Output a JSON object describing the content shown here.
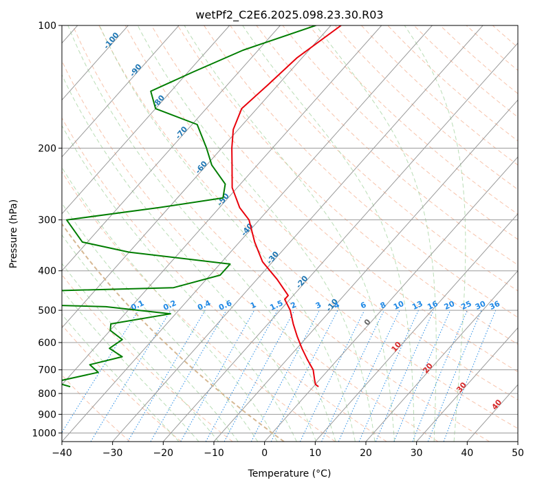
{
  "chart_data": {
    "type": "skewt",
    "title": "wetPf2_C2E6.2025.098.23.30.R03",
    "xlabel": "Temperature (°C)",
    "ylabel": "Pressure (hPa)",
    "xlim": [
      -40,
      50
    ],
    "ylim": [
      1050,
      100
    ],
    "x_ticks": [
      -40,
      -30,
      -20,
      -10,
      0,
      10,
      20,
      30,
      40,
      50
    ],
    "x_tick_labels": [
      "−40",
      "−30",
      "−20",
      "−10",
      "0",
      "10",
      "20",
      "30",
      "40",
      "50"
    ],
    "y_ticks": [
      100,
      200,
      300,
      400,
      500,
      600,
      700,
      800,
      900,
      1000
    ],
    "y_tick_labels": [
      "100",
      "200",
      "300",
      "400",
      "500",
      "600",
      "700",
      "800",
      "900",
      "1000"
    ],
    "grid": true,
    "log_pressure": true,
    "colors": {
      "temperature": "#e8000b",
      "dewpoint": "#007d00",
      "isotherm": "#999999",
      "isobar": "#999999",
      "dry_adiabat": "#f4a988",
      "moist_adiabat": "#a8d5a2",
      "mixing_ratio": "#1e88e5",
      "zero_isotherm": "#d2b48c",
      "mixing_ratio_label": "#1e88e5",
      "dry_adiabat_label": "#d62728",
      "isotherm_label": "#1f77b4"
    },
    "series": [
      {
        "name": "Temperature",
        "points": [
          [
            100,
            -58
          ],
          [
            120,
            -61
          ],
          [
            140,
            -62
          ],
          [
            160,
            -63
          ],
          [
            180,
            -61
          ],
          [
            200,
            -58
          ],
          [
            220,
            -55
          ],
          [
            250,
            -51
          ],
          [
            280,
            -46
          ],
          [
            300,
            -42
          ],
          [
            340,
            -37
          ],
          [
            380,
            -32
          ],
          [
            420,
            -26
          ],
          [
            460,
            -21
          ],
          [
            470,
            -21
          ],
          [
            500,
            -18
          ],
          [
            540,
            -15
          ],
          [
            580,
            -12
          ],
          [
            620,
            -9
          ],
          [
            660,
            -6
          ],
          [
            700,
            -3
          ],
          [
            740,
            -1
          ],
          [
            760,
            0
          ],
          [
            770,
            1
          ]
        ]
      },
      {
        "name": "Dewpoint",
        "points": [
          [
            100,
            -63
          ],
          [
            115,
            -73
          ],
          [
            130,
            -79
          ],
          [
            145,
            -84
          ],
          [
            160,
            -80
          ],
          [
            175,
            -69
          ],
          [
            200,
            -63
          ],
          [
            220,
            -59
          ],
          [
            245,
            -53
          ],
          [
            265,
            -51
          ],
          [
            280,
            -62
          ],
          [
            300,
            -78
          ],
          [
            340,
            -71
          ],
          [
            360,
            -60
          ],
          [
            385,
            -38
          ],
          [
            410,
            -38
          ],
          [
            440,
            -45
          ],
          [
            455,
            -89
          ],
          [
            465,
            -101
          ],
          [
            475,
            -94
          ],
          [
            490,
            -55
          ],
          [
            510,
            -41
          ],
          [
            540,
            -51
          ],
          [
            560,
            -50
          ],
          [
            590,
            -46
          ],
          [
            620,
            -47
          ],
          [
            650,
            -43
          ],
          [
            680,
            -48
          ],
          [
            710,
            -45
          ],
          [
            750,
            -52
          ],
          [
            770,
            -48
          ]
        ]
      }
    ],
    "isotherm_labels": [
      "-100",
      "-90",
      "-80",
      "-70",
      "-60",
      "-50",
      "-40",
      "-30",
      "-20",
      "-10",
      "0",
      "10",
      "20",
      "30",
      "40"
    ],
    "mixing_ratio_labels": [
      "0.1",
      "0.2",
      "0.4",
      "0.6",
      "1",
      "1.5",
      "2",
      "3",
      "4",
      "6",
      "8",
      "10",
      "13",
      "16",
      "20",
      "25",
      "30",
      "36"
    ],
    "dry_adiabat_labels": [
      "10",
      "20",
      "30",
      "40"
    ]
  }
}
